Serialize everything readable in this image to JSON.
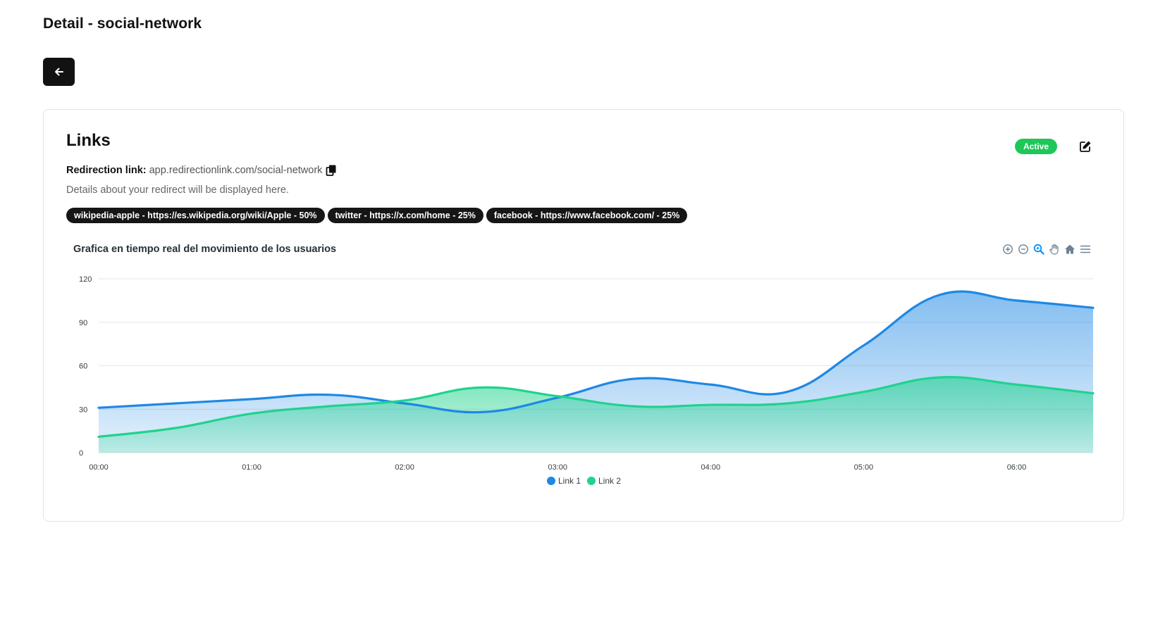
{
  "page": {
    "title": "Detail - social-network"
  },
  "back_button": {
    "icon": "arrow-left-icon"
  },
  "card": {
    "title": "Links",
    "status": "Active",
    "status_color": "#1ec75a",
    "redirect_label": "Redirection link:",
    "redirect_url": "app.redirectionlink.com/social-network",
    "description": "Details about your redirect will be displayed here.",
    "links": [
      "wikipedia-apple - https://es.wikipedia.org/wiki/Apple - 50%",
      "twitter - https://x.com/home - 25%",
      "facebook - https://www.facebook.com/ - 25%"
    ]
  },
  "chart_toolbar": [
    "zoom-in-icon",
    "zoom-out-icon",
    "zoom-select-icon",
    "pan-icon",
    "reset-home-icon",
    "menu-icon"
  ],
  "chart_data": {
    "type": "area",
    "title": "Grafica en tiempo real del movimiento de los usuarios",
    "x": [
      "00:00",
      "00:30",
      "01:00",
      "01:30",
      "02:00",
      "02:30",
      "03:00",
      "03:30",
      "04:00",
      "04:30",
      "05:00",
      "05:30",
      "06:00",
      "06:30"
    ],
    "x_ticks": [
      "00:00",
      "01:00",
      "02:00",
      "03:00",
      "04:00",
      "05:00",
      "06:00"
    ],
    "y_ticks": [
      0,
      30,
      60,
      90,
      120
    ],
    "ylim": [
      0,
      120
    ],
    "series": [
      {
        "name": "Link 1",
        "color": "#1e88e5",
        "values": [
          31,
          34,
          37,
          40,
          34,
          28,
          38,
          51,
          47,
          42,
          74,
          109,
          105,
          100
        ]
      },
      {
        "name": "Link 2",
        "color": "#1fd38d",
        "values": [
          11,
          17,
          27,
          32,
          36,
          45,
          39,
          32,
          33,
          34,
          42,
          52,
          47,
          41
        ]
      }
    ],
    "grid": true,
    "legend": "bottom-center"
  }
}
